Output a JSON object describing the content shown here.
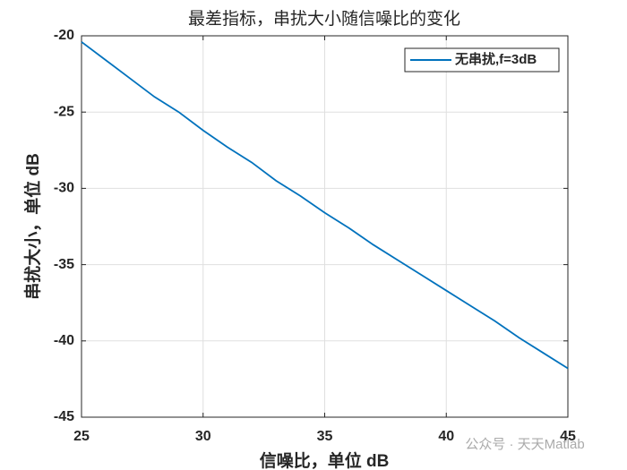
{
  "chart_data": {
    "type": "line",
    "title": "最差指标，串扰大小随信噪比的变化",
    "xlabel": "信噪比，单位 dB",
    "ylabel": "串扰大小，单位 dB",
    "x": [
      25,
      26,
      27,
      28,
      29,
      30,
      31,
      32,
      33,
      34,
      35,
      36,
      37,
      38,
      39,
      40,
      41,
      42,
      43,
      44,
      45
    ],
    "series": [
      {
        "name": "无串扰,f=3dB",
        "color": "#0072bd",
        "values": [
          -20.4,
          -21.6,
          -22.8,
          -24.0,
          -25.0,
          -26.2,
          -27.3,
          -28.3,
          -29.5,
          -30.5,
          -31.6,
          -32.6,
          -33.7,
          -34.7,
          -35.7,
          -36.7,
          -37.7,
          -38.7,
          -39.8,
          -40.8,
          -41.8
        ]
      }
    ],
    "xlim": [
      25,
      45
    ],
    "xticks": [
      25,
      30,
      35,
      40,
      45
    ],
    "ylim": [
      -45,
      -20
    ],
    "yticks": [
      -45,
      -40,
      -35,
      -30,
      -25,
      -20
    ],
    "grid": true,
    "legend": "northeast",
    "watermark": "公众号 · 天天Matlab"
  }
}
